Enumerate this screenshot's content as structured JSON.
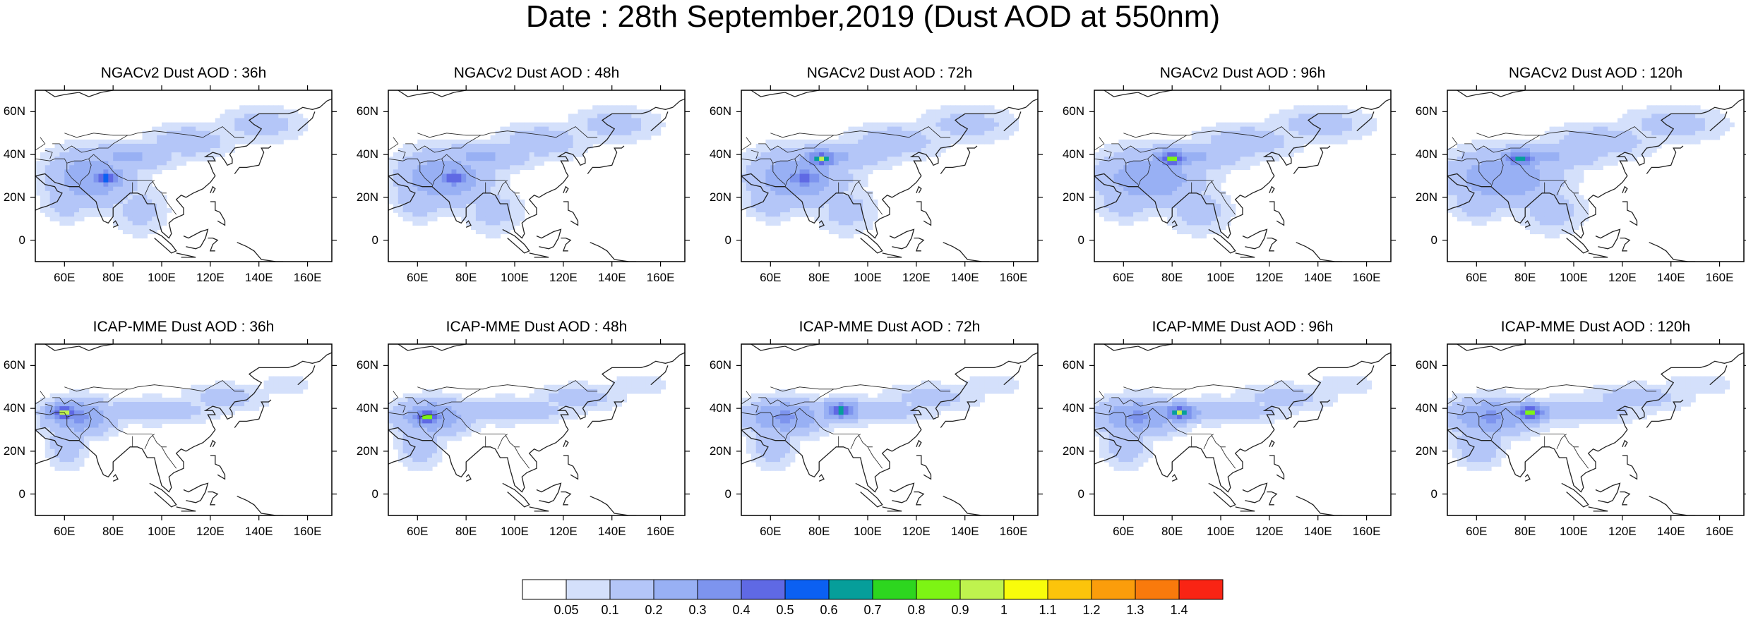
{
  "title": "Date : 28th September,2019 (Dust AOD at 550nm)",
  "colors": {
    "land_line": "#222222",
    "frame": "#000000"
  },
  "map": {
    "lon_labels": [
      "60E",
      "80E",
      "100E",
      "120E",
      "140E",
      "160E"
    ],
    "lat_labels": [
      "60N",
      "40N",
      "20N",
      "0"
    ],
    "lon_values": [
      60,
      80,
      100,
      120,
      140,
      160
    ],
    "lat_values": [
      60,
      40,
      20,
      0
    ],
    "lon_range": [
      48,
      170
    ],
    "lat_range": [
      -10,
      70
    ]
  },
  "rows": [
    {
      "model": "NGACv2",
      "panels": [
        {
          "title": "NGACv2 Dust AOD : 36h",
          "hotspots": [
            {
              "lon": 76,
              "lat": 30,
              "peak": 0.7
            }
          ]
        },
        {
          "title": "NGACv2 Dust AOD : 48h",
          "hotspots": [
            {
              "lon": 74,
              "lat": 30,
              "peak": 0.5
            }
          ]
        },
        {
          "title": "NGACv2 Dust AOD : 72h",
          "hotspots": [
            {
              "lon": 80,
              "lat": 39,
              "peak": 0.9
            },
            {
              "lon": 73,
              "lat": 30,
              "peak": 0.4
            }
          ]
        },
        {
          "title": "NGACv2 Dust AOD : 96h",
          "hotspots": [
            {
              "lon": 79,
              "lat": 39,
              "peak": 0.9
            }
          ]
        },
        {
          "title": "NGACv2 Dust AOD : 120h",
          "hotspots": [
            {
              "lon": 77,
              "lat": 39,
              "peak": 0.7
            }
          ]
        }
      ]
    },
    {
      "model": "ICAP-MME",
      "panels": [
        {
          "title": "ICAP-MME Dust AOD : 36h",
          "hotspots": [
            {
              "lon": 59,
              "lat": 39,
              "peak": 1.0
            }
          ]
        },
        {
          "title": "ICAP-MME Dust AOD : 48h",
          "hotspots": [
            {
              "lon": 63,
              "lat": 37,
              "peak": 0.9
            }
          ]
        },
        {
          "title": "ICAP-MME Dust AOD : 72h",
          "hotspots": [
            {
              "lon": 88,
              "lat": 40,
              "peak": 0.8
            }
          ]
        },
        {
          "title": "ICAP-MME Dust AOD : 96h",
          "hotspots": [
            {
              "lon": 82,
              "lat": 39,
              "peak": 0.9
            }
          ]
        },
        {
          "title": "ICAP-MME Dust AOD : 120h",
          "hotspots": [
            {
              "lon": 81,
              "lat": 39,
              "peak": 0.9
            }
          ]
        }
      ]
    }
  ],
  "colorbar": {
    "labels": [
      "0.05",
      "0.1",
      "0.2",
      "0.3",
      "0.4",
      "0.5",
      "0.6",
      "0.7",
      "0.8",
      "0.9",
      "1",
      "1.1",
      "1.2",
      "1.3",
      "1.4"
    ],
    "colors": [
      "#ffffff",
      "#d4e0fb",
      "#b4c6f8",
      "#98b0f4",
      "#7d94ee",
      "#5f69e4",
      "#0b60f2",
      "#069e9a",
      "#2dd61f",
      "#7df414",
      "#bff34e",
      "#f8fc0b",
      "#fcc40b",
      "#fb9d0b",
      "#f97a0c",
      "#f92414"
    ]
  }
}
